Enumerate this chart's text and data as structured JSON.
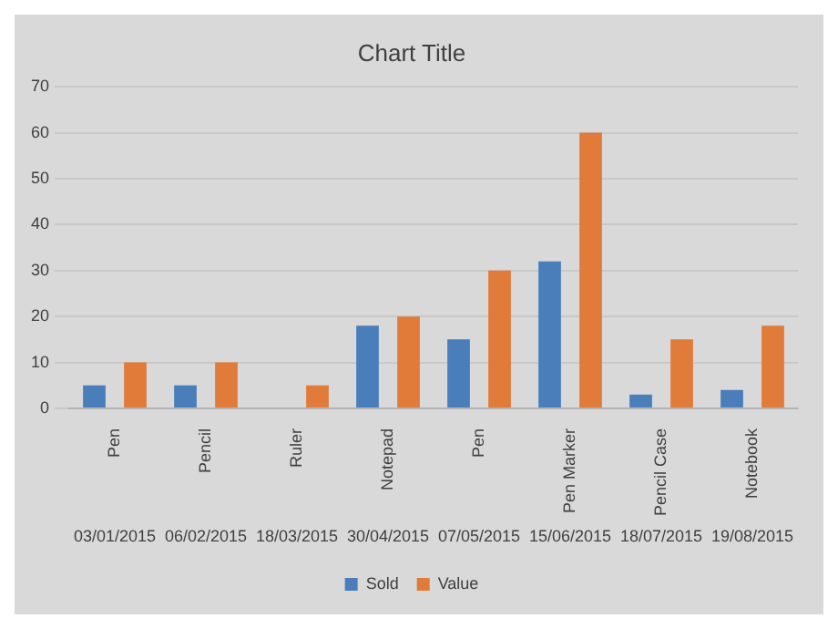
{
  "chart_data": {
    "type": "bar",
    "title": "Chart Title",
    "categories": [
      "Pen",
      "Pencil",
      "Ruler",
      "Notepad",
      "Pen",
      "Pen Marker",
      "Pencil Case",
      "Notebook"
    ],
    "series": [
      {
        "name": "Sold",
        "color": "#4a7ebb",
        "values": [
          5,
          5,
          null,
          18,
          15,
          32,
          3,
          4
        ]
      },
      {
        "name": "Value",
        "color": "#e07b39",
        "values": [
          10,
          10,
          5,
          20,
          30,
          60,
          15,
          18
        ]
      }
    ],
    "annotations": [
      "03/01/2015",
      "06/02/2015",
      "18/03/2015",
      "30/04/2015",
      "07/05/2015",
      "15/06/2015",
      "18/07/2015",
      "19/08/2015"
    ],
    "ylim": [
      0,
      70
    ],
    "yticks": [
      0,
      10,
      20,
      30,
      40,
      50,
      60,
      70
    ],
    "grid": "y",
    "legend": "bottom"
  }
}
